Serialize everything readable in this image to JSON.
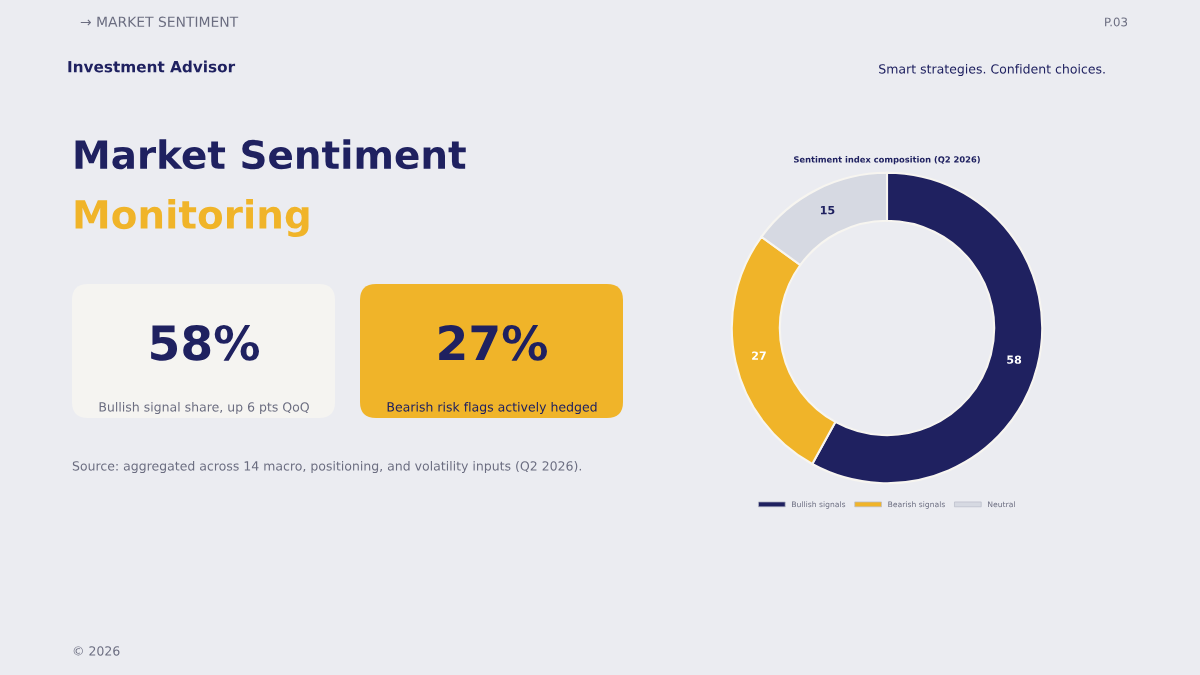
{
  "chart_data": [
    {
      "type": "other",
      "title": "Market Sentiment",
      "subtitle": "Monitoring",
      "annotations": [
        "→ MARKET SENTIMENT",
        "P.03",
        "Investment Advisor",
        "Smart strategies. Confident choices.",
        "58%",
        "Bullish signal share, up 6 pts QoQ",
        "27%",
        "Bearish risk flags actively hedged",
        "Source: aggregated across 14 macro, positioning, and volatility inputs (Q2 2026).",
        "© 2026"
      ]
    },
    {
      "type": "donut",
      "title": "Sentiment index composition (Q2 2026)",
      "categories": [
        "Bullish signals",
        "Bearish signals",
        "Neutral"
      ],
      "values": [
        58,
        27,
        15
      ],
      "colors": [
        "#1f2160",
        "#f0b429",
        "#d6d9e2"
      ],
      "data_labels": true,
      "legend": "bottom"
    }
  ]
}
